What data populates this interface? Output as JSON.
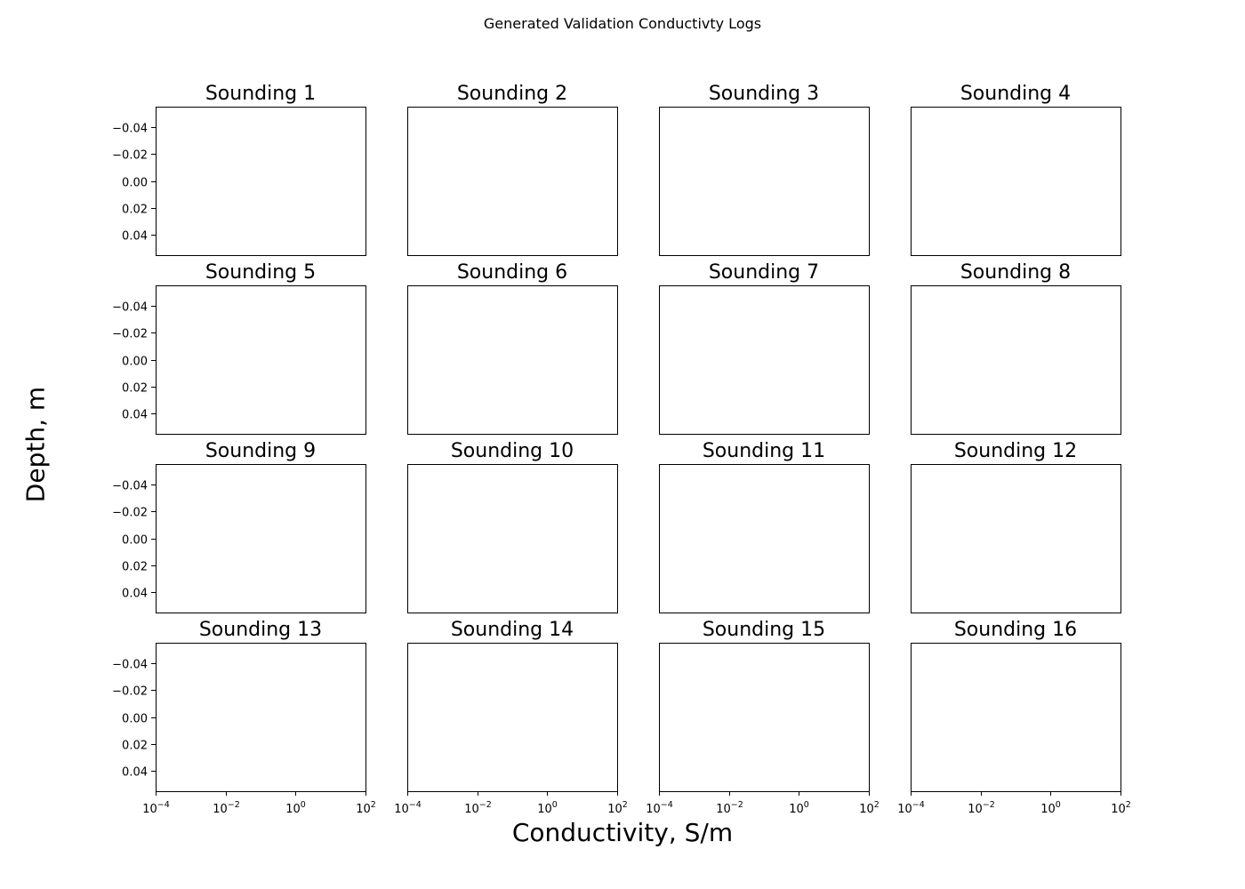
{
  "figure": {
    "suptitle": "Generated Validation Conductivty Logs",
    "xlabel": "Conductivity, S/m",
    "ylabel": "Depth, m"
  },
  "chart_data": {
    "type": "line",
    "grid": false,
    "x_scale": "log",
    "xlim": [
      0.0001,
      100
    ],
    "ylim": [
      0.055,
      -0.055
    ],
    "y_inverted": true,
    "xticks": [
      {
        "value": 0.0001,
        "base": "10",
        "exp": "−4"
      },
      {
        "value": 0.01,
        "base": "10",
        "exp": "−2"
      },
      {
        "value": 1,
        "base": "10",
        "exp": "0"
      },
      {
        "value": 100,
        "base": "10",
        "exp": "2"
      }
    ],
    "yticks": [
      {
        "value": -0.04,
        "label": "−0.04"
      },
      {
        "value": -0.02,
        "label": "−0.02"
      },
      {
        "value": 0.0,
        "label": "0.00"
      },
      {
        "value": 0.02,
        "label": "0.02"
      },
      {
        "value": 0.04,
        "label": "0.04"
      }
    ],
    "subplots": [
      {
        "title": "Sounding 1",
        "series": []
      },
      {
        "title": "Sounding 2",
        "series": []
      },
      {
        "title": "Sounding 3",
        "series": []
      },
      {
        "title": "Sounding 4",
        "series": []
      },
      {
        "title": "Sounding 5",
        "series": []
      },
      {
        "title": "Sounding 6",
        "series": []
      },
      {
        "title": "Sounding 7",
        "series": []
      },
      {
        "title": "Sounding 8",
        "series": []
      },
      {
        "title": "Sounding 9",
        "series": []
      },
      {
        "title": "Sounding 10",
        "series": []
      },
      {
        "title": "Sounding 11",
        "series": []
      },
      {
        "title": "Sounding 12",
        "series": []
      },
      {
        "title": "Sounding 13",
        "series": []
      },
      {
        "title": "Sounding 14",
        "series": []
      },
      {
        "title": "Sounding 15",
        "series": []
      },
      {
        "title": "Sounding 16",
        "series": []
      }
    ]
  }
}
